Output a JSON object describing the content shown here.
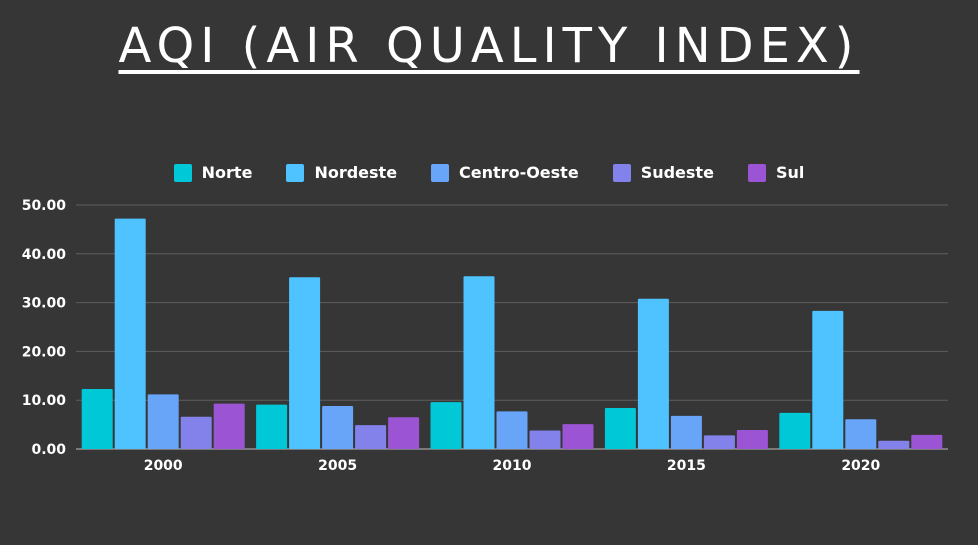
{
  "title": "AQI (AIR QUALITY INDEX)",
  "chart_data": {
    "type": "bar",
    "categories": [
      "2000",
      "2005",
      "2010",
      "2015",
      "2020"
    ],
    "series": [
      {
        "name": "Norte",
        "color": "#00c8d7",
        "values": [
          12.3,
          9.1,
          9.6,
          8.4,
          7.4
        ]
      },
      {
        "name": "Nordeste",
        "color": "#4ec3ff",
        "values": [
          47.2,
          35.2,
          35.4,
          30.8,
          28.3
        ]
      },
      {
        "name": "Centro-Oeste",
        "color": "#68a4f7",
        "values": [
          11.2,
          8.8,
          7.7,
          6.8,
          6.1
        ]
      },
      {
        "name": "Sudeste",
        "color": "#8282ea",
        "values": [
          6.6,
          4.9,
          3.8,
          2.8,
          1.7
        ]
      },
      {
        "name": "Sul",
        "color": "#9b55d4",
        "values": [
          9.3,
          6.5,
          5.1,
          3.9,
          2.9
        ]
      }
    ],
    "yticks": [
      "0.00",
      "10.00",
      "20.00",
      "30.00",
      "40.00",
      "50.00"
    ],
    "ylim": [
      0,
      50
    ],
    "grid": true,
    "legend_position": "top-center"
  }
}
